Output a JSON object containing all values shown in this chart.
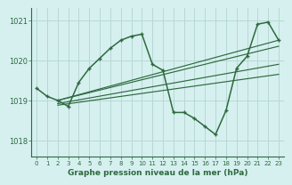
{
  "title": "Graphe pression niveau de la mer (hPa)",
  "bg_color": "#d6f0ef",
  "grid_color": "#b8d8d4",
  "line_color": "#2d6a3f",
  "xlim": [
    -0.5,
    23.5
  ],
  "ylim": [
    1017.6,
    1021.3
  ],
  "yticks": [
    1018,
    1019,
    1020,
    1021
  ],
  "xticks": [
    0,
    1,
    2,
    3,
    4,
    5,
    6,
    7,
    8,
    9,
    10,
    11,
    12,
    13,
    14,
    15,
    16,
    17,
    18,
    19,
    20,
    21,
    22,
    23
  ],
  "main_x": [
    0,
    1,
    2,
    3,
    4,
    5,
    6,
    7,
    8,
    9,
    10,
    11,
    12,
    13,
    14,
    15,
    16,
    17,
    18,
    19,
    20,
    21,
    22,
    23
  ],
  "main_y": [
    1019.3,
    1019.1,
    1019.0,
    1018.85,
    1019.45,
    1019.8,
    1020.05,
    1020.3,
    1020.5,
    1020.6,
    1020.65,
    1019.9,
    1019.75,
    1018.7,
    1018.7,
    1018.55,
    1018.35,
    1018.15,
    1018.75,
    1019.8,
    1020.1,
    1020.9,
    1020.95,
    1020.5
  ],
  "trend1_x": [
    2,
    23
  ],
  "trend1_y": [
    1019.0,
    1020.5
  ],
  "trend2_x": [
    2,
    23
  ],
  "trend2_y": [
    1019.0,
    1020.35
  ],
  "trend3_x": [
    2,
    23
  ],
  "trend3_y": [
    1018.92,
    1019.9
  ],
  "trend4_x": [
    2,
    23
  ],
  "trend4_y": [
    1018.88,
    1019.65
  ],
  "ylabel_fontsize": 6.5,
  "xlabel_fontsize": 5.2,
  "label_fontsize": 6.5
}
